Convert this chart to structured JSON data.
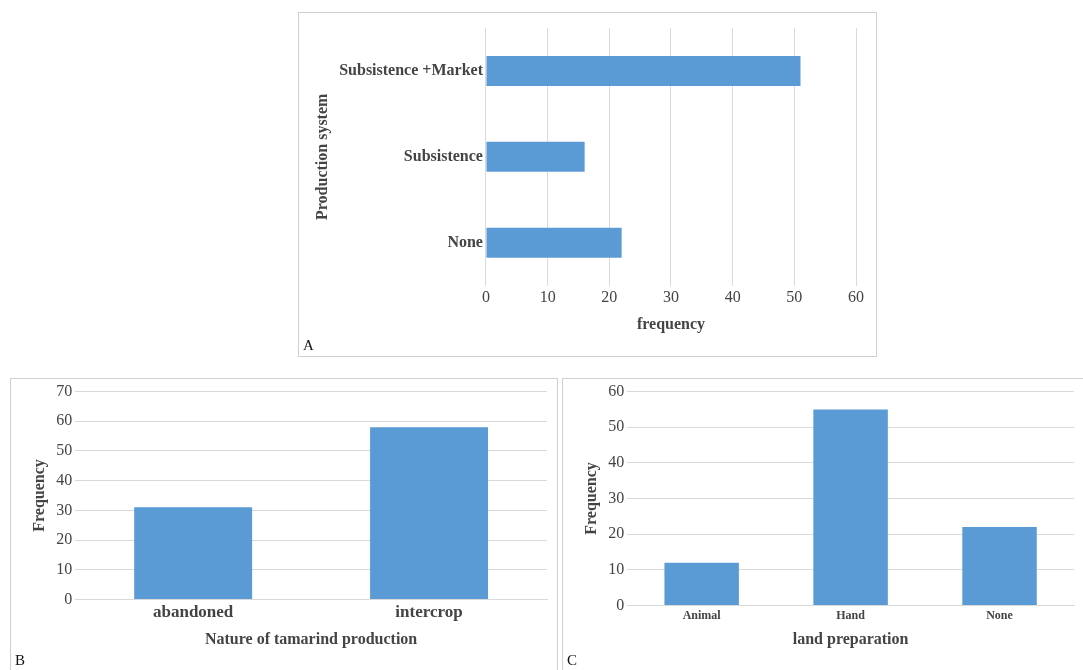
{
  "chart_data": [
    {
      "type": "bar",
      "orientation": "horizontal",
      "categories": [
        "Subsistence +Market",
        "Subsistence",
        "None"
      ],
      "values": [
        51,
        16,
        22
      ],
      "color": "#5b9bd5",
      "xlabel": "frequency",
      "ylabel": "Production system",
      "xlim": [
        0,
        60
      ],
      "xticks": [
        0,
        10,
        20,
        30,
        40,
        50,
        60
      ],
      "grid": "x",
      "annotations": [
        "A"
      ]
    },
    {
      "type": "bar",
      "categories": [
        "abandoned",
        "intercrop"
      ],
      "values": [
        31,
        58
      ],
      "color": "#5b9bd5",
      "xlabel": "Nature of tamarind production",
      "ylabel": "Frequency",
      "ylim": [
        0,
        70
      ],
      "yticks": [
        0,
        10,
        20,
        30,
        40,
        50,
        60,
        70
      ],
      "grid": "y",
      "annotations": [
        "B"
      ]
    },
    {
      "type": "bar",
      "categories": [
        "Animal",
        "Hand",
        "None"
      ],
      "values": [
        12,
        55,
        22
      ],
      "color": "#5b9bd5",
      "xlabel": "land preparation",
      "ylabel": "Frequency",
      "ylim": [
        0,
        60
      ],
      "yticks": [
        0,
        10,
        20,
        30,
        40,
        50,
        60
      ],
      "grid": "y",
      "annotations": [
        "C"
      ]
    }
  ]
}
